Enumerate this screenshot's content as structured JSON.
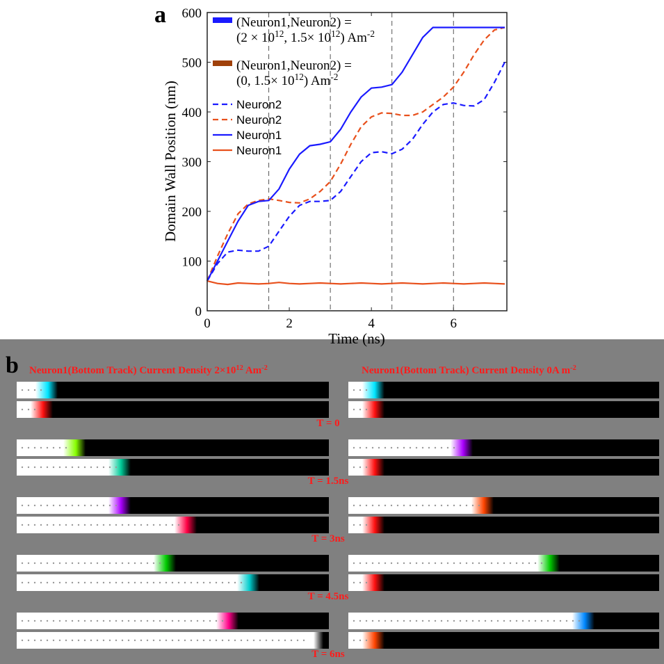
{
  "chart_data": {
    "type": "line",
    "panel_label": "a",
    "xlabel": "Time (ns)",
    "ylabel": "Domain Wall Position (nm)",
    "xlim": [
      0,
      7.3
    ],
    "ylim": [
      0,
      600
    ],
    "xticks": [
      0,
      2,
      4,
      6
    ],
    "yticks": [
      0,
      100,
      200,
      300,
      400,
      500,
      600
    ],
    "vlines": [
      1.5,
      3,
      4.5,
      6
    ],
    "legend_groups": [
      {
        "color": "#1a1aff",
        "lines": [
          [
            {
              "text": "(Neuron1,Neuron2) ="
            }
          ],
          [
            {
              "text": "(2 × 10"
            },
            {
              "sup": "12"
            },
            {
              "text": ", 1.5× 10"
            },
            {
              "sup": "12"
            },
            {
              "text": ") Am"
            },
            {
              "sup": "-2"
            }
          ]
        ]
      },
      {
        "color": "#a0410a",
        "lines": [
          [
            {
              "text": "(Neuron1,Neuron2) ="
            }
          ],
          [
            {
              "text": "(0, 1.5× 10"
            },
            {
              "sup": "12"
            },
            {
              "text": ") Am"
            },
            {
              "sup": "-2"
            }
          ]
        ]
      }
    ],
    "x": [
      0,
      0.25,
      0.5,
      0.75,
      1,
      1.25,
      1.5,
      1.75,
      2,
      2.25,
      2.5,
      2.75,
      3,
      3.25,
      3.5,
      3.75,
      4,
      4.25,
      4.5,
      4.75,
      5,
      5.25,
      5.5,
      5.75,
      6,
      6.25,
      6.5,
      6.75,
      7,
      7.25
    ],
    "series": [
      {
        "name": "Neuron2",
        "color": "#1a1aff",
        "dashed": true,
        "values": [
          60,
          95,
          118,
          122,
          120,
          120,
          130,
          160,
          190,
          212,
          220,
          220,
          222,
          240,
          270,
          300,
          318,
          320,
          316,
          325,
          345,
          375,
          400,
          415,
          418,
          413,
          412,
          425,
          460,
          500
        ]
      },
      {
        "name": "Neuron2",
        "color": "#e8501c",
        "dashed": true,
        "values": [
          60,
          110,
          155,
          195,
          215,
          222,
          225,
          222,
          218,
          217,
          225,
          240,
          260,
          295,
          335,
          370,
          390,
          398,
          397,
          393,
          393,
          400,
          415,
          430,
          450,
          480,
          515,
          545,
          565,
          570
        ]
      },
      {
        "name": "Neuron1",
        "color": "#1a1aff",
        "dashed": false,
        "values": [
          60,
          100,
          140,
          180,
          212,
          220,
          222,
          245,
          285,
          315,
          332,
          335,
          340,
          365,
          400,
          430,
          448,
          450,
          455,
          480,
          515,
          550,
          570,
          570,
          570,
          570,
          570,
          570,
          570,
          570
        ]
      },
      {
        "name": "Neuron1",
        "color": "#e8501c",
        "dashed": false,
        "values": [
          60,
          55,
          53,
          56,
          55,
          54,
          55,
          57,
          55,
          54,
          55,
          56,
          55,
          54,
          55,
          56,
          55,
          54,
          55,
          56,
          55,
          54,
          55,
          56,
          55,
          54,
          55,
          56,
          55,
          54
        ]
      }
    ]
  },
  "panel_b": {
    "panel_label": "b",
    "headers": [
      [
        {
          "text": "Neuron1(Bottom Track) Current Density 2×10"
        },
        {
          "sup": "12"
        },
        {
          "text": " Am"
        },
        {
          "sup": "-2"
        }
      ],
      [
        {
          "text": "Neuron1(Bottom Track) Current Density 0A m"
        },
        {
          "sup": "-2"
        }
      ]
    ],
    "time_labels": [
      "T = 0",
      "T = 1.5ns",
      "T = 3ns",
      "T = 4.5ns",
      "T = 6ns"
    ]
  }
}
